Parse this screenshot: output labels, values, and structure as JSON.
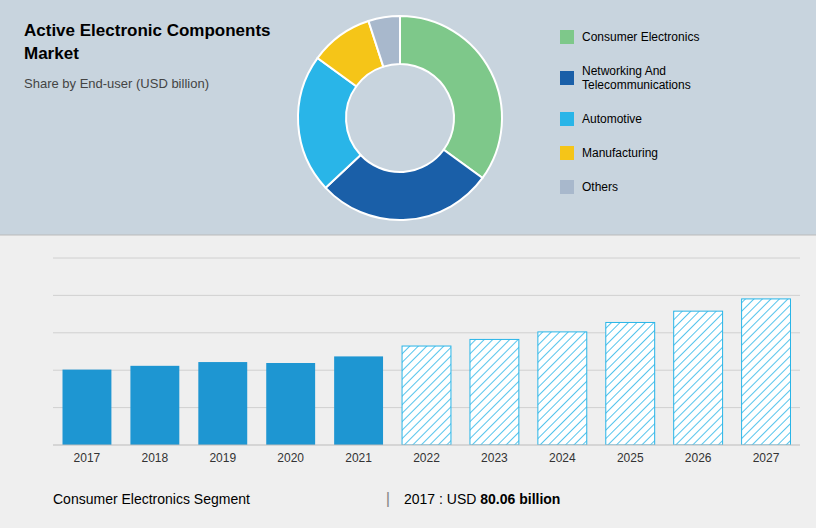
{
  "chart_data": [
    {
      "type": "pie",
      "title": "Active Electronic Components\nMarket",
      "subtitle": "Share by End-user (USD billion)",
      "categories": [
        "Consumer Electronics",
        "Networking And\nTelecommunications",
        "Automotive",
        "Manufacturing",
        "Others"
      ],
      "values": [
        35,
        28,
        22,
        10,
        5
      ],
      "colors": [
        "#7ec88a",
        "#1a5fa8",
        "#29b5e8",
        "#f5c518",
        "#a8b8cc"
      ],
      "legend": "right"
    },
    {
      "type": "bar",
      "categories": [
        "2017",
        "2018",
        "2019",
        "2020",
        "2021",
        "2022",
        "2023",
        "2024",
        "2025",
        "2026",
        "2027"
      ],
      "values": [
        80,
        84,
        88,
        87,
        94,
        105,
        112,
        120,
        130,
        142,
        155
      ],
      "colors": [
        "#1e96d2",
        "#1e96d2",
        "#1e96d2",
        "#1e96d2",
        "#1e96d2",
        "#29b5e8",
        "#29b5e8",
        "#29b5e8",
        "#29b5e8",
        "#29b5e8",
        "#29b5e8"
      ],
      "ylim": [
        0,
        198.4
      ],
      "yticks": [
        0,
        39.68,
        79.36,
        119.04,
        158.72,
        198.4
      ],
      "grid": true,
      "tick_labels": "x",
      "annotations": [
        "Consumer Electronics Segment",
        "|",
        "2017 : USD ",
        "80.06 billion"
      ]
    }
  ]
}
